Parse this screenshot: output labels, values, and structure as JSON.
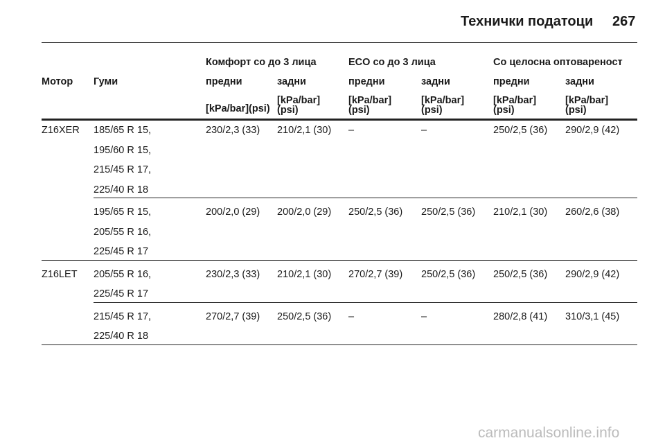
{
  "header": {
    "title": "Технички податоци",
    "page": "267"
  },
  "table": {
    "group_headers": [
      "Комфорт со до 3 лица",
      "ECO со до 3 лица",
      "Со целосна оптовареност"
    ],
    "column_headers": {
      "engine": "Мотор",
      "tyres": "Гуми"
    },
    "sub_headers": [
      "предни",
      "задни",
      "предни",
      "задни",
      "предни",
      "задни"
    ],
    "units": [
      [
        "[kPa/bar](psi)"
      ],
      [
        "[kPa/bar]",
        "(psi)"
      ],
      [
        "[kPa/bar]",
        "(psi)"
      ],
      [
        "[kPa/bar]",
        "(psi)"
      ],
      [
        "[kPa/bar]",
        "(psi)"
      ],
      [
        "[kPa/bar]",
        "(psi)"
      ]
    ],
    "engines": [
      {
        "name": "Z16XER",
        "rows": [
          {
            "tyres": [
              "185/65 R 15,",
              "195/60 R 15,",
              "215/45 R 17,",
              "225/40 R 18"
            ],
            "pressures": [
              "230/2,3 (33)",
              "210/2,1 (30)",
              "–",
              "–",
              "250/2,5 (36)",
              "290/2,9 (42)"
            ]
          },
          {
            "tyres": [
              "195/65 R 15,",
              "205/55 R 16,",
              "225/45 R 17"
            ],
            "pressures": [
              "200/2,0 (29)",
              "200/2,0 (29)",
              "250/2,5 (36)",
              "250/2,5 (36)",
              "210/2,1 (30)",
              "260/2,6 (38)"
            ]
          }
        ]
      },
      {
        "name": "Z16LET",
        "rows": [
          {
            "tyres": [
              "205/55 R 16,",
              "225/45 R 17"
            ],
            "pressures": [
              "230/2,3 (33)",
              "210/2,1 (30)",
              "270/2,7 (39)",
              "250/2,5 (36)",
              "250/2,5 (36)",
              "290/2,9 (42)"
            ]
          },
          {
            "tyres": [
              "215/45 R 17,",
              "225/40 R 18"
            ],
            "pressures": [
              "270/2,7 (39)",
              "250/2,5 (36)",
              "–",
              "–",
              "280/2,8 (41)",
              "310/3,1 (45)"
            ]
          }
        ]
      }
    ]
  },
  "watermark": "carmanualsonline.info"
}
